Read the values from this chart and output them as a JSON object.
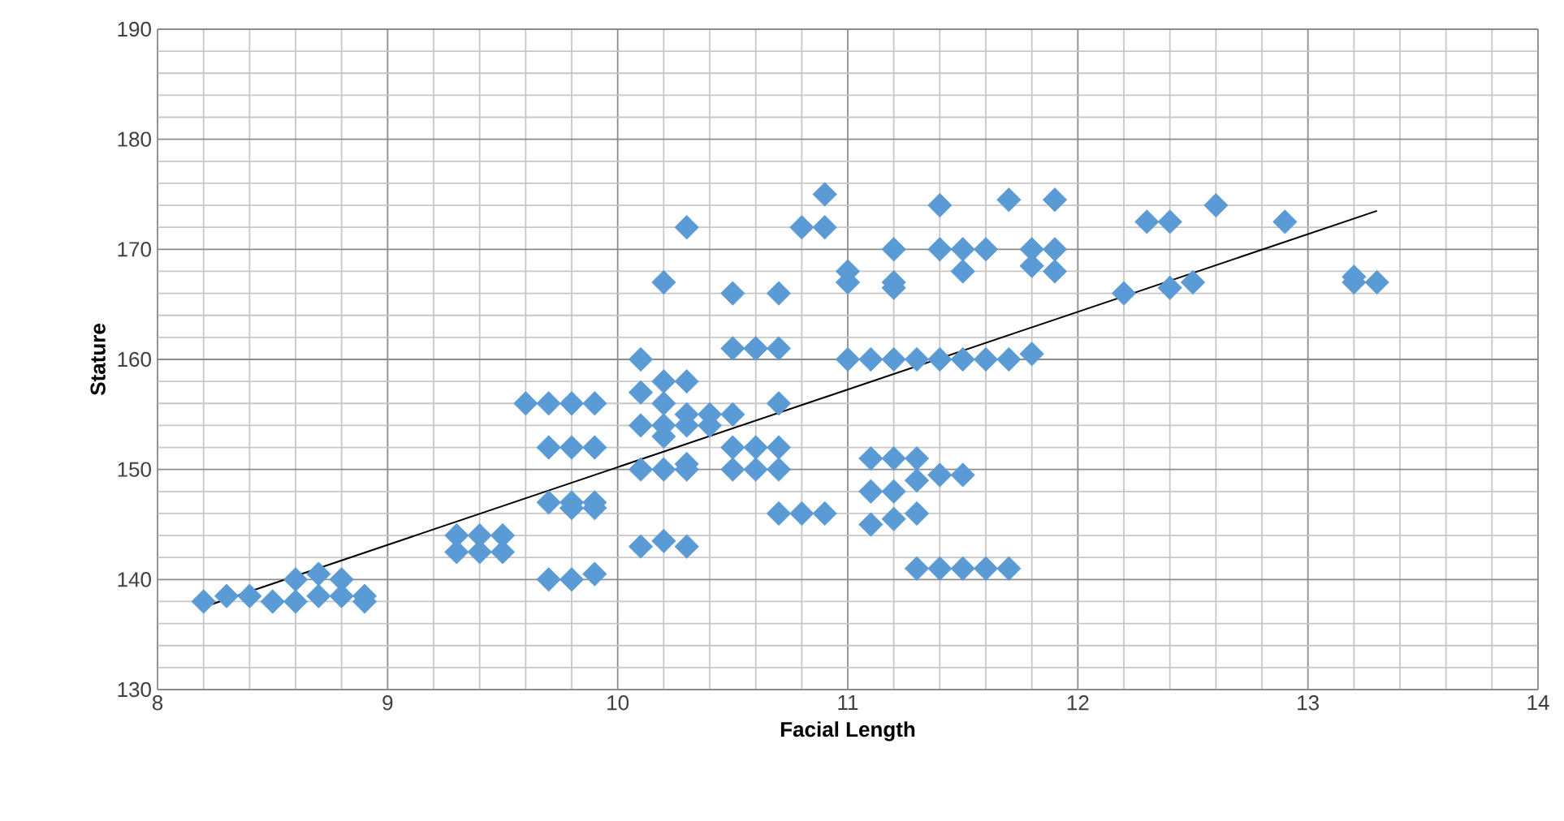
{
  "chart_data": {
    "type": "scatter",
    "xlabel": "Facial Length",
    "ylabel": "Stature",
    "xlim": [
      8,
      14
    ],
    "ylim": [
      130,
      190
    ],
    "xticks": [
      8,
      9,
      10,
      11,
      12,
      13,
      14
    ],
    "yticks": [
      130,
      140,
      150,
      160,
      170,
      180,
      190
    ],
    "grid": true,
    "marker": "diamond",
    "series": [
      {
        "color": "#5b9bd5",
        "x": [
          8.2,
          8.3,
          8.4,
          8.5,
          8.6,
          8.6,
          8.7,
          8.7,
          8.8,
          8.8,
          8.9,
          8.9,
          9.3,
          9.3,
          9.4,
          9.4,
          9.5,
          9.5,
          9.6,
          9.7,
          9.7,
          9.7,
          9.7,
          9.8,
          9.8,
          9.8,
          9.8,
          9.8,
          9.9,
          9.9,
          9.9,
          9.9,
          9.9,
          10.1,
          10.1,
          10.1,
          10.1,
          10.1,
          10.2,
          10.2,
          10.2,
          10.2,
          10.2,
          10.2,
          10.2,
          10.3,
          10.3,
          10.3,
          10.3,
          10.3,
          10.3,
          10.3,
          10.4,
          10.4,
          10.5,
          10.5,
          10.5,
          10.5,
          10.5,
          10.6,
          10.6,
          10.6,
          10.6,
          10.7,
          10.7,
          10.7,
          10.7,
          10.7,
          10.7,
          10.8,
          10.8,
          10.9,
          10.9,
          10.9,
          11.0,
          11.0,
          11.0,
          11.1,
          11.1,
          11.1,
          11.1,
          11.2,
          11.2,
          11.2,
          11.2,
          11.2,
          11.2,
          11.2,
          11.3,
          11.3,
          11.3,
          11.3,
          11.3,
          11.4,
          11.4,
          11.4,
          11.4,
          11.4,
          11.5,
          11.5,
          11.5,
          11.5,
          11.5,
          11.6,
          11.6,
          11.6,
          11.7,
          11.7,
          11.7,
          11.8,
          11.8,
          11.8,
          11.9,
          11.9,
          11.9,
          12.2,
          12.3,
          12.4,
          12.4,
          12.5,
          12.6,
          12.9,
          13.2,
          13.2,
          13.3
        ],
        "values": [
          138,
          138.5,
          138.5,
          138,
          138,
          140,
          138.5,
          140.5,
          138.5,
          140,
          138,
          138.5,
          142.5,
          144,
          142.5,
          144,
          142.5,
          144,
          156,
          156,
          152,
          147,
          140,
          156,
          152,
          147,
          146.5,
          140,
          156,
          152,
          147,
          146.5,
          140.5,
          160,
          157,
          154,
          150,
          143,
          167,
          158,
          156,
          154,
          153,
          150,
          143.5,
          172,
          158,
          155,
          154,
          150.5,
          150,
          143,
          155,
          154,
          166,
          161,
          155,
          152,
          150,
          161,
          161,
          152,
          150,
          166,
          161,
          156,
          152,
          150,
          146,
          172,
          146,
          175,
          172,
          146,
          168,
          167,
          160,
          160,
          151,
          148,
          145,
          170,
          167,
          166.5,
          160,
          151,
          148,
          145.5,
          160,
          151,
          149,
          146,
          141,
          174,
          170,
          160,
          149.5,
          141,
          170,
          168,
          160,
          149.5,
          141,
          170,
          160,
          141,
          174.5,
          160,
          141,
          170,
          168.5,
          160.5,
          174.5,
          170,
          168,
          166,
          172.5,
          172.5,
          166.5,
          167,
          174,
          172.5,
          167.5,
          167,
          167
        ]
      },
      {
        "type": "line",
        "color": "#000000",
        "marker": "none",
        "x": [
          8.2,
          13.3
        ],
        "values": [
          137.5,
          173.5
        ]
      }
    ]
  }
}
